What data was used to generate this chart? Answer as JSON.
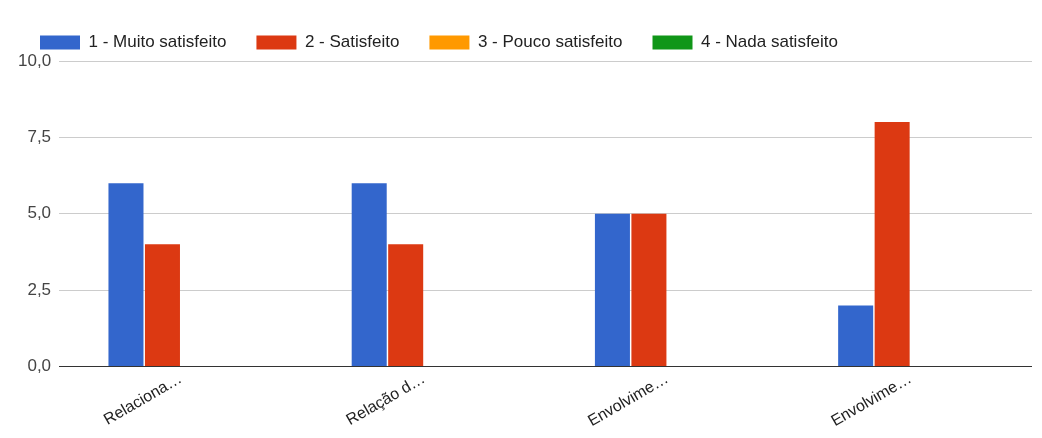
{
  "chart_data": {
    "type": "bar",
    "categories": [
      "Relaciona…",
      "Relação d…",
      "Envolvime…",
      "Envolvime…"
    ],
    "series": [
      {
        "name": "1 - Muito satisfeito",
        "color": "#3366cc",
        "values": [
          6,
          6,
          5,
          2
        ]
      },
      {
        "name": "2 - Satisfeito",
        "color": "#dc3912",
        "values": [
          4,
          4,
          5,
          8
        ]
      },
      {
        "name": "3 - Pouco satisfeito",
        "color": "#ff9900",
        "values": [
          0,
          0,
          0,
          0
        ]
      },
      {
        "name": "4 - Nada satisfeito",
        "color": "#109618",
        "values": [
          0,
          0,
          0,
          0
        ]
      }
    ],
    "ylim": [
      0,
      10
    ],
    "yticks": [
      {
        "value": 0,
        "label": "0,0"
      },
      {
        "value": 2.5,
        "label": "2,5"
      },
      {
        "value": 5,
        "label": "5,0"
      },
      {
        "value": 7.5,
        "label": "7,5"
      },
      {
        "value": 10,
        "label": "10,0"
      }
    ],
    "grid": "y",
    "legend": "top"
  }
}
